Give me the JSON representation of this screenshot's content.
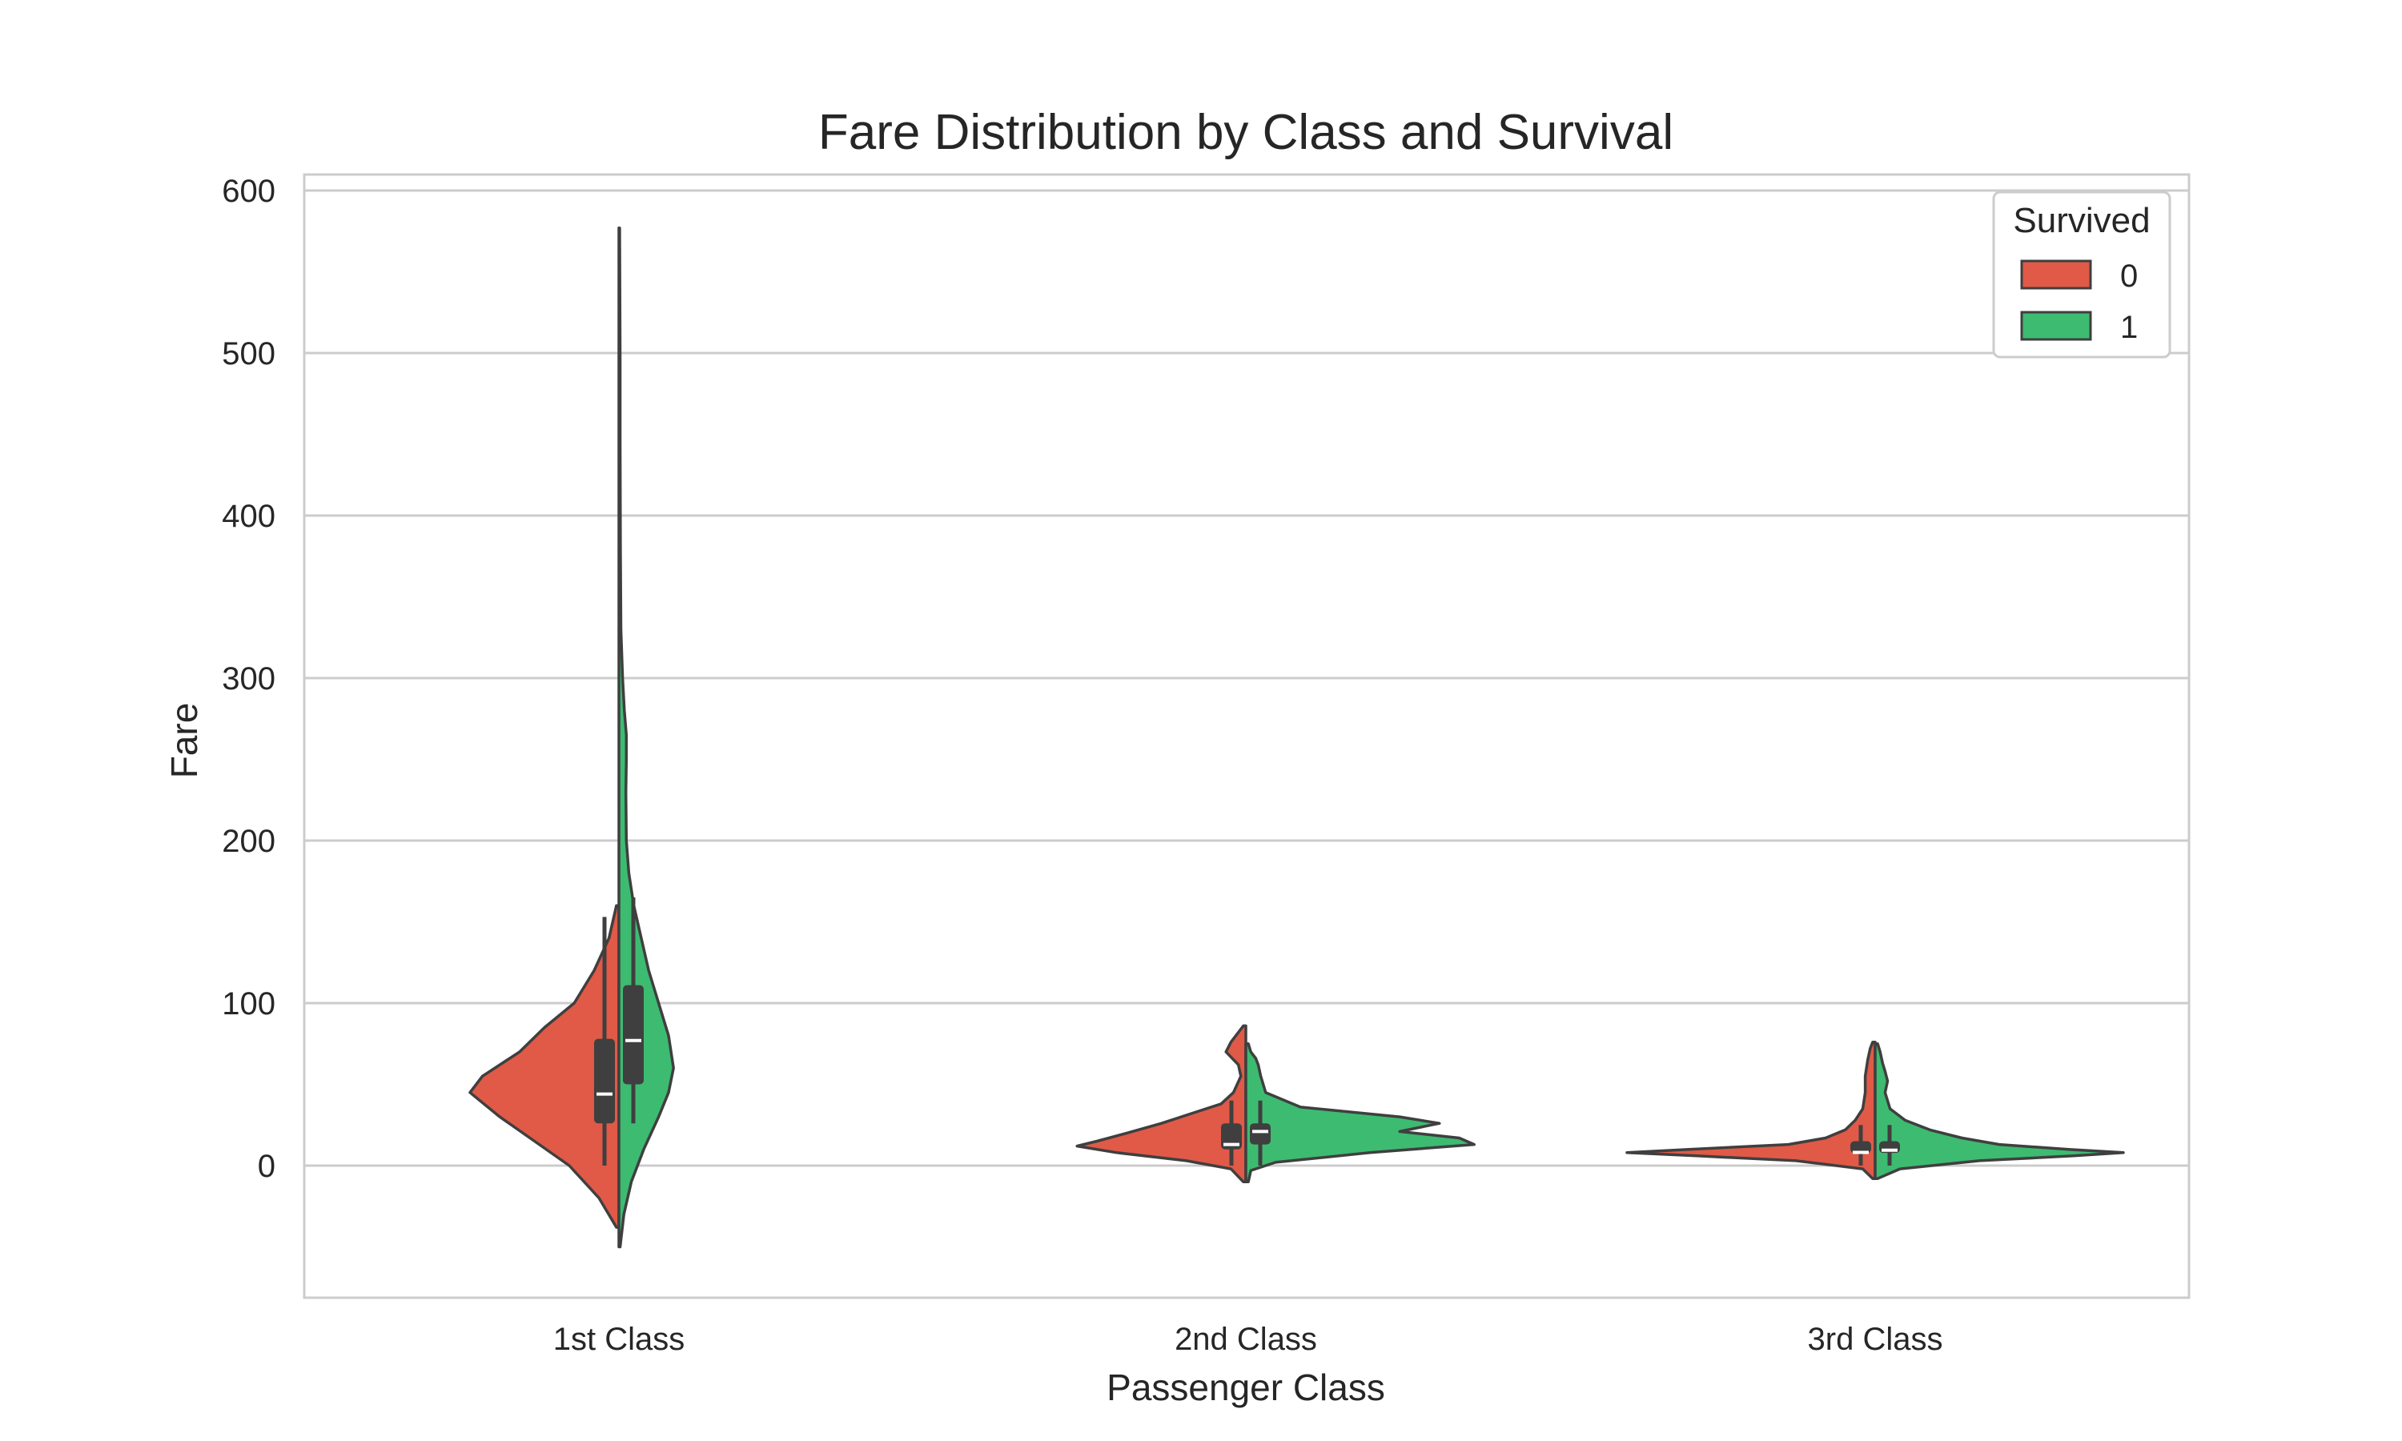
{
  "chart_data": {
    "type": "violin",
    "title": "Fare Distribution by Class and Survival",
    "xlabel": "Passenger Class",
    "ylabel": "Fare",
    "categories": [
      "1st Class",
      "2nd Class",
      "3rd Class"
    ],
    "ylim": [
      -80,
      610
    ],
    "yticks": [
      0,
      100,
      200,
      300,
      400,
      500,
      600
    ],
    "grid": true,
    "split": true,
    "legend": {
      "title": "Survived",
      "position": "top-right",
      "entries": [
        {
          "label": "0",
          "color": "#e05a47"
        },
        {
          "label": "1",
          "color": "#3dbb71"
        }
      ]
    },
    "series": [
      {
        "name": "0",
        "color": "#e05a47",
        "violins": [
          {
            "category": "1st Class",
            "range": [
              -38,
              160
            ],
            "quartiles": [
              26,
              44,
              78
            ],
            "whiskers": [
              0,
              153
            ],
            "density": [
              [
                -38,
                0.01
              ],
              [
                -20,
                0.08
              ],
              [
                0,
                0.2
              ],
              [
                15,
                0.34
              ],
              [
                30,
                0.48
              ],
              [
                45,
                0.6
              ],
              [
                55,
                0.55
              ],
              [
                70,
                0.4
              ],
              [
                85,
                0.3
              ],
              [
                100,
                0.18
              ],
              [
                120,
                0.1
              ],
              [
                140,
                0.04
              ],
              [
                160,
                0.01
              ]
            ]
          },
          {
            "category": "2nd Class",
            "range": [
              -10,
              86
            ],
            "quartiles": [
              10,
              13,
              26
            ],
            "whiskers": [
              0,
              40
            ],
            "density": [
              [
                -10,
                0.01
              ],
              [
                -2,
                0.06
              ],
              [
                3,
                0.24
              ],
              [
                8,
                0.52
              ],
              [
                12,
                0.68
              ],
              [
                15,
                0.6
              ],
              [
                20,
                0.48
              ],
              [
                26,
                0.34
              ],
              [
                32,
                0.22
              ],
              [
                38,
                0.1
              ],
              [
                45,
                0.05
              ],
              [
                55,
                0.02
              ],
              [
                62,
                0.03
              ],
              [
                70,
                0.08
              ],
              [
                76,
                0.06
              ],
              [
                82,
                0.03
              ],
              [
                86,
                0.01
              ]
            ]
          },
          {
            "category": "3rd Class",
            "range": [
              -8,
              76
            ],
            "quartiles": [
              7.8,
              8.1,
              15
            ],
            "whiskers": [
              0,
              25
            ],
            "density": [
              [
                -8,
                0.01
              ],
              [
                -2,
                0.05
              ],
              [
                3,
                0.32
              ],
              [
                6,
                0.72
              ],
              [
                8,
                1.0
              ],
              [
                10,
                0.75
              ],
              [
                13,
                0.35
              ],
              [
                17,
                0.2
              ],
              [
                22,
                0.12
              ],
              [
                28,
                0.08
              ],
              [
                35,
                0.05
              ],
              [
                45,
                0.04
              ],
              [
                55,
                0.04
              ],
              [
                65,
                0.03
              ],
              [
                72,
                0.02
              ],
              [
                76,
                0.01
              ]
            ]
          }
        ]
      },
      {
        "name": "1",
        "color": "#3dbb71",
        "violins": [
          {
            "category": "1st Class",
            "range": [
              -50,
              577
            ],
            "quartiles": [
              50,
              77,
              111
            ],
            "whiskers": [
              26,
              165
            ],
            "density": [
              [
                -50,
                0.005
              ],
              [
                -30,
                0.02
              ],
              [
                -10,
                0.05
              ],
              [
                10,
                0.1
              ],
              [
                30,
                0.16
              ],
              [
                45,
                0.2
              ],
              [
                60,
                0.22
              ],
              [
                80,
                0.2
              ],
              [
                100,
                0.16
              ],
              [
                120,
                0.12
              ],
              [
                140,
                0.09
              ],
              [
                160,
                0.06
              ],
              [
                180,
                0.04
              ],
              [
                200,
                0.03
              ],
              [
                230,
                0.028
              ],
              [
                250,
                0.03
              ],
              [
                265,
                0.03
              ],
              [
                280,
                0.022
              ],
              [
                300,
                0.015
              ],
              [
                330,
                0.008
              ],
              [
                380,
                0.006
              ],
              [
                450,
                0.005
              ],
              [
                500,
                0.005
              ],
              [
                577,
                0.003
              ]
            ]
          },
          {
            "category": "2nd Class",
            "range": [
              -10,
              75
            ],
            "quartiles": [
              13,
              21,
              26
            ],
            "whiskers": [
              0,
              40
            ],
            "density": [
              [
                -10,
                0.01
              ],
              [
                -3,
                0.02
              ],
              [
                2,
                0.12
              ],
              [
                8,
                0.5
              ],
              [
                13,
                0.92
              ],
              [
                17,
                0.86
              ],
              [
                21,
                0.62
              ],
              [
                26,
                0.78
              ],
              [
                30,
                0.62
              ],
              [
                36,
                0.22
              ],
              [
                45,
                0.08
              ],
              [
                55,
                0.06
              ],
              [
                62,
                0.05
              ],
              [
                66,
                0.04
              ],
              [
                70,
                0.02
              ],
              [
                75,
                0.01
              ]
            ]
          },
          {
            "category": "3rd Class",
            "range": [
              -8,
              75
            ],
            "quartiles": [
              7.8,
              9.5,
              15
            ],
            "whiskers": [
              0,
              25
            ],
            "density": [
              [
                -8,
                0.01
              ],
              [
                -2,
                0.1
              ],
              [
                3,
                0.42
              ],
              [
                6,
                0.8
              ],
              [
                8,
                1.0
              ],
              [
                10,
                0.78
              ],
              [
                13,
                0.5
              ],
              [
                17,
                0.35
              ],
              [
                22,
                0.22
              ],
              [
                28,
                0.12
              ],
              [
                35,
                0.06
              ],
              [
                45,
                0.04
              ],
              [
                52,
                0.05
              ],
              [
                58,
                0.04
              ],
              [
                63,
                0.03
              ],
              [
                70,
                0.02
              ],
              [
                75,
                0.01
              ]
            ]
          }
        ]
      }
    ]
  }
}
